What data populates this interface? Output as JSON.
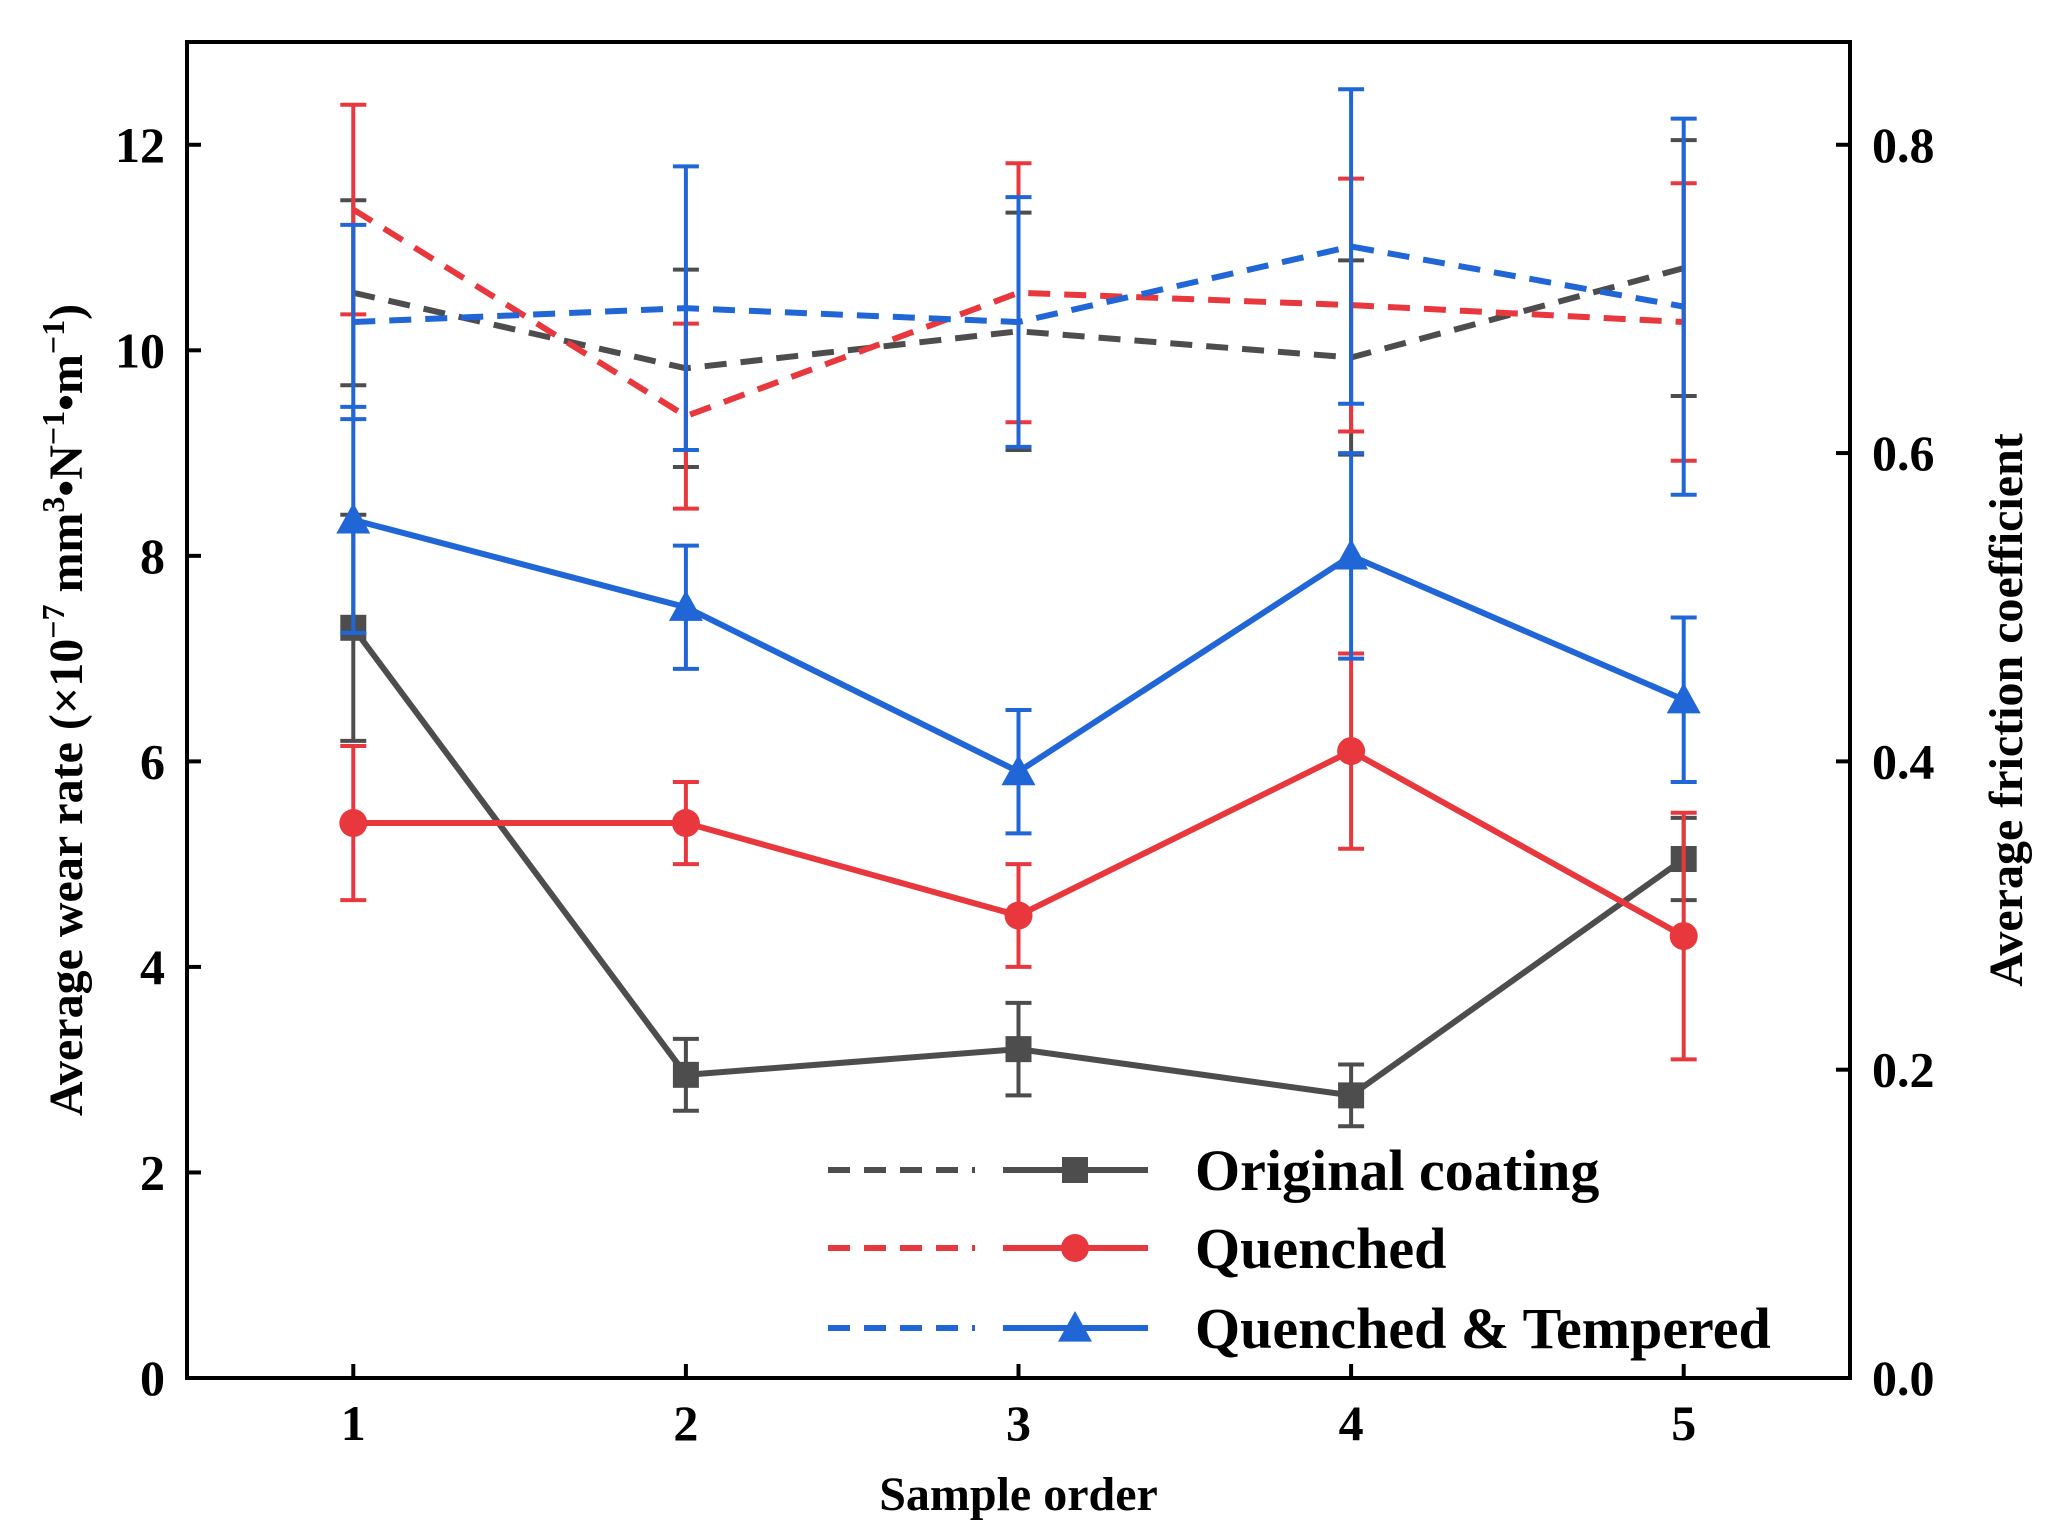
{
  "chart_data": {
    "type": "line",
    "x": [
      1,
      2,
      3,
      4,
      5
    ],
    "xlabel": "Sample order",
    "ylabel_left_parts": [
      "Average wear rate (×10",
      "−7",
      " mm",
      "3",
      "•N",
      "−1",
      "•m",
      "−1",
      ")"
    ],
    "ylabel_right": "Average friction coefficient",
    "xlim": [
      0.5,
      5.5
    ],
    "ylim_left": [
      0,
      13
    ],
    "ylim_right": [
      0,
      0.8666667
    ],
    "xticks": [
      "1",
      "2",
      "3",
      "4",
      "5"
    ],
    "yticks_left": [
      "0",
      "2",
      "4",
      "6",
      "8",
      "10",
      "12"
    ],
    "yticks_right": [
      "0.0",
      "0.2",
      "0.4",
      "0.6",
      "0.8"
    ],
    "grid": false,
    "legend_position": "bottom-right",
    "series": [
      {
        "name": "Original coating",
        "color": "#4d4d4d",
        "marker": "square",
        "wear_rate": [
          7.3,
          2.95,
          3.2,
          2.75,
          5.05
        ],
        "wear_rate_err": [
          1.1,
          0.35,
          0.45,
          0.3,
          0.4
        ],
        "friction": [
          0.704,
          0.655,
          0.679,
          0.662,
          0.72
        ],
        "friction_err": [
          0.06,
          0.064,
          0.077,
          0.063,
          0.083
        ]
      },
      {
        "name": "Quenched",
        "color": "#e8383d",
        "marker": "circle",
        "wear_rate": [
          5.4,
          5.4,
          4.5,
          6.1,
          4.3
        ],
        "wear_rate_err": [
          0.75,
          0.4,
          0.5,
          0.95,
          1.2
        ],
        "friction": [
          0.758,
          0.624,
          0.704,
          0.696,
          0.685
        ],
        "friction_err": [
          0.068,
          0.06,
          0.084,
          0.082,
          0.09
        ]
      },
      {
        "name": "Quenched & Tempered",
        "color": "#2066d6",
        "marker": "triangle",
        "wear_rate": [
          8.35,
          7.5,
          5.9,
          8.0,
          6.6
        ],
        "wear_rate_err": [
          1.1,
          0.6,
          0.6,
          1.0,
          0.8
        ],
        "friction": [
          0.685,
          0.694,
          0.685,
          0.734,
          0.695
        ],
        "friction_err": [
          0.063,
          0.092,
          0.081,
          0.102,
          0.122
        ]
      }
    ]
  }
}
